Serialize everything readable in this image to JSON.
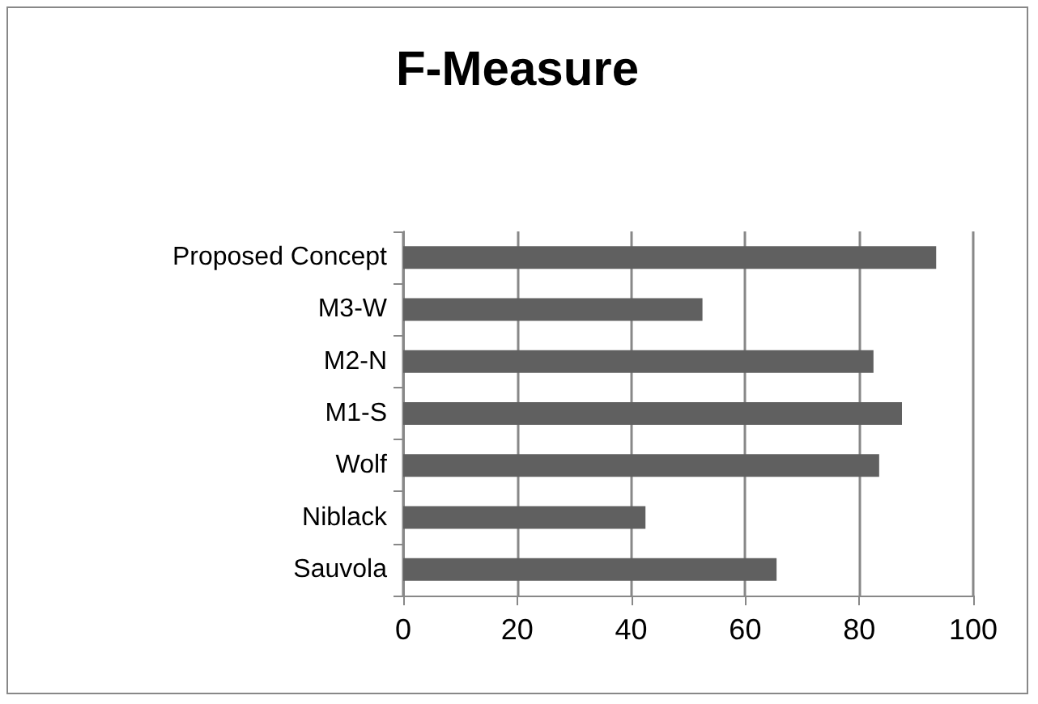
{
  "chart_data": {
    "type": "bar",
    "orientation": "horizontal",
    "title": "F-Measure",
    "categories": [
      "Proposed Concept",
      "M3-W",
      "M2-N",
      "M1-S",
      "Wolf",
      "Niblack",
      "Sauvola"
    ],
    "values": [
      93.5,
      52.5,
      82.5,
      87.5,
      83.5,
      42.5,
      65.5
    ],
    "color": "#606060",
    "xlim": [
      0,
      100
    ],
    "xticks": [
      0,
      20,
      40,
      60,
      80,
      100
    ],
    "grid": "x"
  }
}
